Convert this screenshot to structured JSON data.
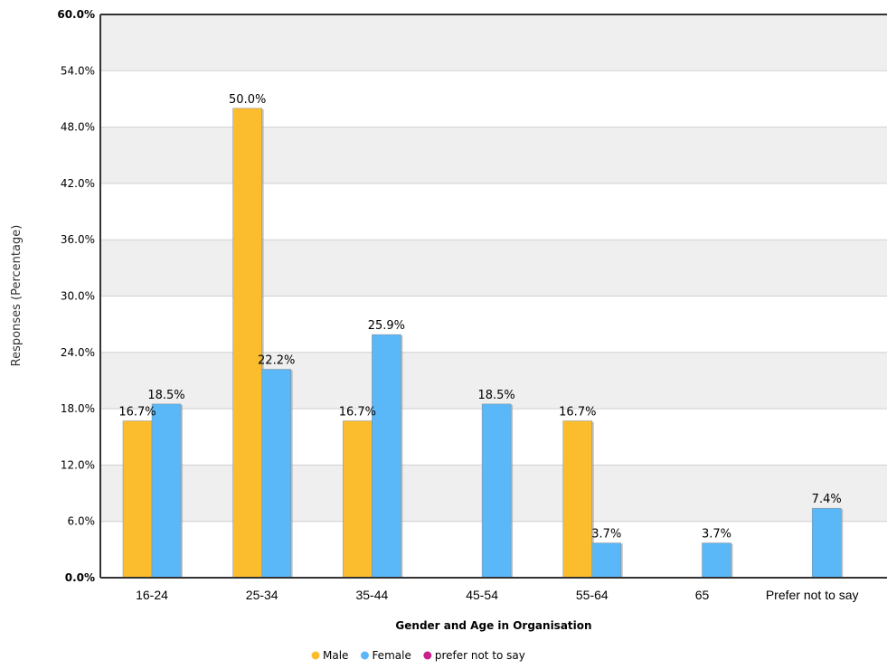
{
  "chart_data": {
    "type": "bar",
    "title": "",
    "xlabel": "Gender and Age in Organisation",
    "ylabel": "Responses (Percentage)",
    "categories": [
      "16-24",
      "25-34",
      "35-44",
      "45-54",
      "55-64",
      "65",
      "Prefer not to say"
    ],
    "ylim": [
      0,
      60
    ],
    "yticks": [
      "0.0%",
      "6.0%",
      "12.0%",
      "18.0%",
      "24.0%",
      "30.0%",
      "36.0%",
      "42.0%",
      "48.0%",
      "54.0%",
      "60.0%"
    ],
    "grid": true,
    "legend_position": "bottom",
    "series": [
      {
        "name": "Male",
        "color": "#FBBD2E",
        "values": [
          16.7,
          50.0,
          16.7,
          null,
          16.7,
          null,
          null
        ],
        "labels": [
          "16.7%",
          "50.0%",
          "16.7%",
          "",
          "16.7%",
          "",
          ""
        ]
      },
      {
        "name": "Female",
        "color": "#5AB8F8",
        "values": [
          18.5,
          22.2,
          25.9,
          18.5,
          3.7,
          3.7,
          7.4
        ],
        "labels": [
          "18.5%",
          "22.2%",
          "25.9%",
          "18.5%",
          "3.7%",
          "3.7%",
          "7.4%"
        ]
      },
      {
        "name": "prefer not to say",
        "color": "#C8218C",
        "values": [
          null,
          null,
          null,
          null,
          null,
          null,
          null
        ],
        "labels": [
          "",
          "",
          "",
          "",
          "",
          "",
          ""
        ]
      }
    ]
  }
}
